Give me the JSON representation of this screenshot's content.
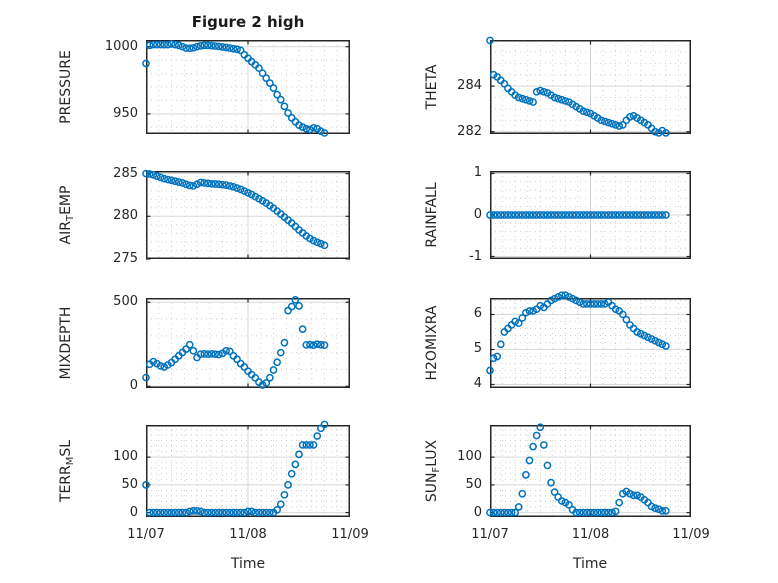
{
  "figure": {
    "title": "Figure 2 high",
    "background_color": "#ffffff",
    "marker_color": "#0072BD",
    "axis_color": "#262626",
    "grid_color": "#d9d9d9",
    "minor_grid_color": "#c9c9c9"
  },
  "time_axis": {
    "label": "Time",
    "tick_labels": [
      "11/07",
      "11/08",
      "11/09"
    ],
    "range_hours": [
      0,
      48
    ],
    "minor_step_hours": 3,
    "points_start_hour": 0,
    "points_end_hour": 42,
    "n_points": 50
  },
  "chart_data": [
    {
      "type": "scatter",
      "name": "pressure",
      "ylabel": "PRESSURE",
      "ylabel_parts": [
        {
          "text": "PRESSURE"
        }
      ],
      "yticks": [
        950,
        1000
      ],
      "ylim": [
        935,
        1005
      ],
      "y_minor_step": 10,
      "values": [
        987.5,
        1001,
        1001.5,
        1001.5,
        1001.5,
        1001.5,
        1001.5,
        1002,
        1001.5,
        1001,
        1000,
        999,
        998.8,
        999.2,
        1000,
        1000.6,
        1001,
        1001,
        1000.8,
        1000.5,
        1000.2,
        999.8,
        999.4,
        999,
        998.5,
        998,
        997.3,
        994,
        991.4,
        988.9,
        986.5,
        984,
        980.3,
        976.6,
        972.9,
        969.2,
        964.3,
        960.6,
        955.6,
        950.7,
        947,
        944.1,
        941.6,
        940.1,
        938.9,
        938.4,
        939.6,
        938.9,
        937.1,
        935.8
      ]
    },
    {
      "type": "scatter",
      "name": "theta",
      "ylabel": "THETA",
      "ylabel_parts": [
        {
          "text": "THETA"
        }
      ],
      "yticks": [
        282,
        284
      ],
      "ylim": [
        281.9,
        286.02
      ],
      "y_minor_step": 0.5,
      "values": [
        286,
        284.5,
        284.4,
        284.25,
        284.1,
        283.9,
        283.75,
        283.6,
        283.5,
        283.45,
        283.4,
        283.35,
        283.3,
        283.75,
        283.8,
        283.75,
        283.7,
        283.6,
        283.5,
        283.45,
        283.4,
        283.35,
        283.3,
        283.2,
        283.1,
        283.0,
        282.9,
        282.85,
        282.8,
        282.7,
        282.6,
        282.5,
        282.45,
        282.4,
        282.35,
        282.3,
        282.25,
        282.3,
        282.5,
        282.65,
        282.7,
        282.6,
        282.5,
        282.4,
        282.3,
        282.15,
        282.0,
        281.95,
        282.05,
        281.95
      ]
    },
    {
      "type": "scatter",
      "name": "air-temp",
      "ylabel": "AIR_TEMP",
      "ylabel_parts": [
        {
          "text": "AIR"
        },
        {
          "sub": "T"
        },
        {
          "text": "EMP"
        }
      ],
      "yticks": [
        275,
        280,
        285
      ],
      "ylim": [
        275,
        285.3
      ],
      "y_minor_step": 1,
      "values": [
        285.0,
        284.95,
        284.85,
        284.7,
        284.55,
        284.4,
        284.3,
        284.2,
        284.1,
        284.0,
        283.9,
        283.75,
        283.6,
        283.55,
        283.75,
        283.95,
        283.9,
        283.85,
        283.8,
        283.78,
        283.75,
        283.7,
        283.65,
        283.55,
        283.45,
        283.3,
        283.15,
        282.95,
        282.75,
        282.55,
        282.3,
        282.05,
        281.8,
        281.55,
        281.25,
        280.95,
        280.6,
        280.25,
        279.9,
        279.55,
        279.2,
        278.8,
        278.4,
        278.05,
        277.7,
        277.4,
        277.15,
        276.95,
        276.8,
        276.6
      ]
    },
    {
      "type": "scatter",
      "name": "rainfall",
      "ylabel": "RAINFALL",
      "ylabel_parts": [
        {
          "text": "RAINFALL"
        }
      ],
      "yticks": [
        -1,
        0,
        1
      ],
      "ylim": [
        -1.06,
        1.06
      ],
      "y_minor_step": 0.2,
      "values": [
        0,
        0,
        0,
        0,
        0,
        0,
        0,
        0,
        0,
        0,
        0,
        0,
        0,
        0,
        0,
        0,
        0,
        0,
        0,
        0,
        0,
        0,
        0,
        0,
        0,
        0,
        0,
        0,
        0,
        0,
        0,
        0,
        0,
        0,
        0,
        0,
        0,
        0,
        0,
        0,
        0,
        0,
        0,
        0,
        0,
        0,
        0,
        0,
        0,
        0
      ]
    },
    {
      "type": "scatter",
      "name": "mixdepth",
      "ylabel": "MIXDEPTH",
      "ylabel_parts": [
        {
          "text": "MIXDEPTH"
        }
      ],
      "yticks": [
        0,
        500
      ],
      "ylim": [
        -10,
        525
      ],
      "y_minor_step": 100,
      "values": [
        52,
        131,
        147,
        135,
        121,
        115,
        127,
        141,
        161,
        181,
        201,
        221,
        247,
        211,
        171,
        191,
        193,
        191,
        193,
        191,
        189,
        196,
        211,
        208,
        181,
        161,
        135,
        115,
        90,
        70,
        50,
        25,
        8,
        20,
        51,
        97,
        143,
        200,
        259,
        450,
        474,
        514,
        478,
        340,
        246,
        248,
        245,
        250,
        247,
        245
      ]
    },
    {
      "type": "scatter",
      "name": "h2omixra",
      "ylabel": "H2OMIXRA",
      "ylabel_parts": [
        {
          "text": "H2OMIXRA"
        }
      ],
      "yticks": [
        4,
        5,
        6
      ],
      "ylim": [
        3.9,
        6.47
      ],
      "y_minor_step": 0.2,
      "values": [
        4.4,
        4.75,
        4.8,
        5.15,
        5.5,
        5.6,
        5.7,
        5.8,
        5.75,
        5.9,
        6.05,
        6.1,
        6.1,
        6.15,
        6.25,
        6.2,
        6.3,
        6.4,
        6.45,
        6.5,
        6.55,
        6.55,
        6.5,
        6.45,
        6.4,
        6.35,
        6.3,
        6.3,
        6.3,
        6.3,
        6.3,
        6.3,
        6.3,
        6.35,
        6.25,
        6.15,
        6.1,
        6.0,
        5.85,
        5.7,
        5.6,
        5.5,
        5.45,
        5.4,
        5.35,
        5.3,
        5.25,
        5.2,
        5.15,
        5.1
      ]
    },
    {
      "type": "scatter",
      "name": "terr-msl",
      "ylabel": "TERR_MSL",
      "ylabel_parts": [
        {
          "text": "TERR"
        },
        {
          "sub": "M"
        },
        {
          "text": "SL"
        }
      ],
      "yticks": [
        0,
        50,
        100
      ],
      "ylim": [
        -8,
        158
      ],
      "y_minor_step": 10,
      "values": [
        50,
        0,
        0,
        0,
        0,
        0,
        0,
        0,
        0,
        0,
        0,
        0,
        2,
        3,
        3,
        2,
        0,
        0,
        0,
        0,
        0,
        0,
        0,
        0,
        0,
        0,
        0,
        0,
        2,
        2,
        0,
        0,
        0,
        0,
        0,
        0,
        5,
        15,
        32,
        50,
        70,
        87,
        105,
        122,
        122,
        122,
        122,
        138,
        152,
        159
      ]
    },
    {
      "type": "scatter",
      "name": "sun-flux",
      "ylabel": "SUN_FLUX",
      "ylabel_parts": [
        {
          "text": "SUN"
        },
        {
          "sub": "F"
        },
        {
          "text": "LUX"
        }
      ],
      "yticks": [
        0,
        50,
        100
      ],
      "ylim": [
        -8,
        158
      ],
      "y_minor_step": 10,
      "values": [
        0,
        0,
        0,
        0,
        0,
        0,
        0,
        0,
        10,
        34,
        68,
        94,
        119,
        139,
        154,
        122,
        85,
        54,
        37,
        28,
        21,
        18,
        14,
        5,
        0,
        0,
        0,
        0,
        0,
        0,
        0,
        0,
        0,
        0,
        0,
        2,
        18,
        34,
        38,
        34,
        31,
        31,
        28,
        23,
        18,
        11,
        8,
        6,
        3,
        3
      ]
    }
  ]
}
